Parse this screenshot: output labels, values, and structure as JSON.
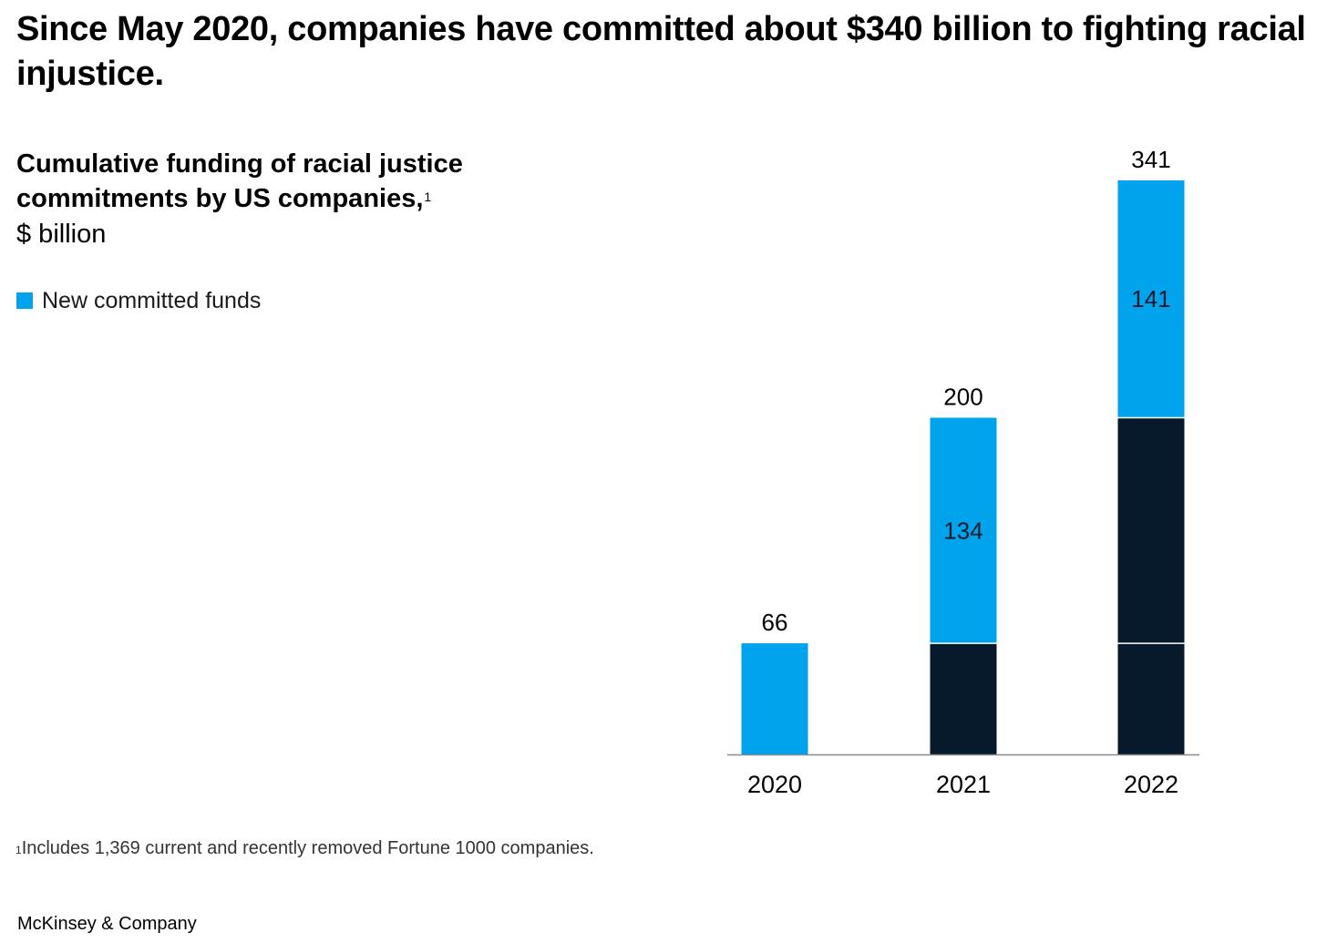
{
  "headline": "Since May 2020, companies have committed about $340 billion to fighting racial injustice.",
  "chart_title": "Cumulative funding of racial justice commitments by US companies,",
  "chart_title_footnote_mark": "1",
  "chart_unit": "$ billion",
  "legend": {
    "label": "New committed funds",
    "color": "#00a3ec"
  },
  "footnote": {
    "mark": "1",
    "text": "Includes 1,369 current and recently removed Fortune 1000 companies."
  },
  "source": "McKinsey & Company",
  "chart_data": {
    "type": "bar",
    "stacked": true,
    "categories": [
      "2020",
      "2021",
      "2022"
    ],
    "series": [
      {
        "values": [
          0,
          66,
          200
        ],
        "color": "#061a2c"
      },
      {
        "name": "New committed funds",
        "values": [
          66,
          134,
          141
        ],
        "color": "#00a3ec"
      }
    ],
    "totals": [
      66,
      200,
      341
    ],
    "segment_labels": [
      "",
      "134",
      "141"
    ],
    "total_labels": [
      "66",
      "200",
      "341"
    ],
    "ylim": [
      0,
      341
    ],
    "title": "Cumulative funding of racial justice commitments by US companies,",
    "ylabel": "$ billion",
    "legend_position": "top-left",
    "grid": false
  }
}
